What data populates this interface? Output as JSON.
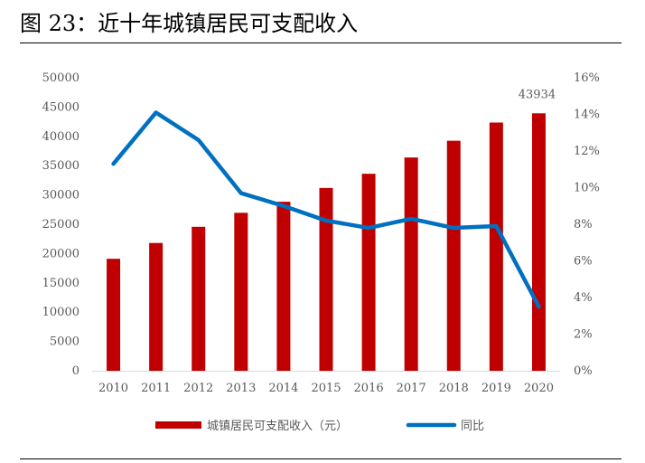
{
  "figure": {
    "title": "图 23：近十年城镇居民可支配收入"
  },
  "chart_data": {
    "type": "bar",
    "categories": [
      "2010",
      "2011",
      "2012",
      "2013",
      "2014",
      "2015",
      "2016",
      "2017",
      "2018",
      "2019",
      "2020"
    ],
    "series": [
      {
        "name": "城镇居民可支配收入（元）",
        "type": "bar",
        "axis": "left",
        "color": "#C00000",
        "values": [
          19109,
          21810,
          24565,
          26955,
          28844,
          31195,
          33616,
          36396,
          39251,
          42359,
          43934
        ]
      },
      {
        "name": "同比",
        "type": "line",
        "axis": "right",
        "color": "#0070C0",
        "values": [
          11.3,
          14.1,
          12.6,
          9.7,
          9.0,
          8.2,
          7.8,
          8.3,
          7.8,
          7.9,
          3.5
        ]
      }
    ],
    "y_left": {
      "min": 0,
      "max": 50000,
      "ticks": [
        "0",
        "5000",
        "10000",
        "15000",
        "20000",
        "25000",
        "30000",
        "35000",
        "40000",
        "45000",
        "50000"
      ]
    },
    "y_right": {
      "min": 0,
      "max": 16,
      "ticks": [
        "0%",
        "2%",
        "4%",
        "6%",
        "8%",
        "10%",
        "12%",
        "14%",
        "16%"
      ]
    },
    "data_labels": [
      {
        "series": 0,
        "index": 10,
        "text": "43934"
      }
    ],
    "legend": {
      "position": "bottom"
    },
    "grid": false
  }
}
